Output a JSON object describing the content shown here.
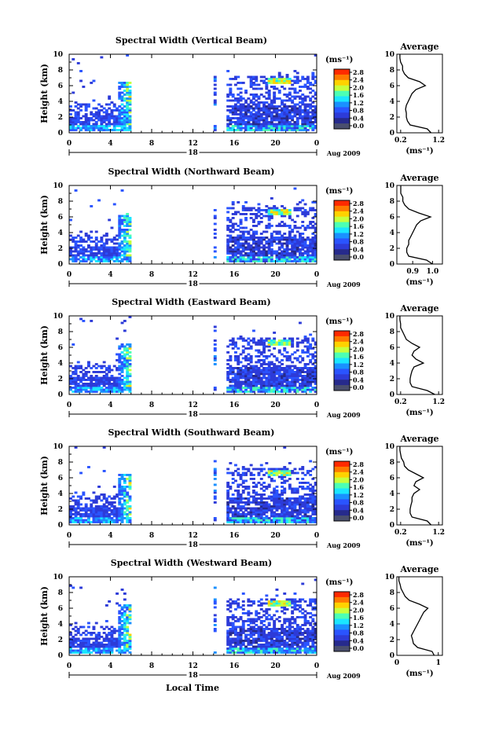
{
  "figure": {
    "xlabel": "Local Time",
    "date_label": "Aug 2009",
    "day_label": "18"
  },
  "colorbar": {
    "unit": "(ms⁻¹)",
    "ticks": [
      "2.8",
      "2.4",
      "2.0",
      "1.6",
      "1.2",
      "0.8",
      "0.4",
      "0.0"
    ],
    "colors": [
      "#ff2a00",
      "#ff7a00",
      "#ffd200",
      "#c8ff3c",
      "#4cffb4",
      "#1ae6ff",
      "#1a90ff",
      "#2a54ff",
      "#2d3bd8",
      "#262a8c",
      "#4a4f6e"
    ]
  },
  "chart_data": [
    {
      "type": "heatmap",
      "title": "Spectral Width (Vertical Beam)",
      "ylabel": "Height (km)",
      "xlabel": "",
      "xlim": [
        0,
        24
      ],
      "ylim": [
        0,
        10
      ],
      "xticks": [
        "0",
        "4",
        "8",
        "12",
        "16",
        "20",
        "0"
      ],
      "yticks": [
        "0",
        "2",
        "4",
        "6",
        "8",
        "10"
      ],
      "avg": {
        "title": "Average",
        "xlabel": "(ms⁻¹)",
        "xticks": [
          "0.2",
          "1.2"
        ],
        "xlim": [
          0.1,
          1.3
        ],
        "heights": [
          0,
          0.5,
          1,
          1.5,
          2,
          2.5,
          3,
          3.5,
          4,
          4.5,
          5,
          5.5,
          6,
          6.5,
          7,
          7.5,
          8,
          8.5,
          9,
          9.5,
          10
        ],
        "values": [
          1.0,
          0.9,
          0.45,
          0.38,
          0.35,
          0.35,
          0.33,
          0.35,
          0.4,
          0.45,
          0.5,
          0.6,
          0.85,
          0.7,
          0.4,
          0.3,
          0.25,
          0.25,
          0.2,
          0.18,
          0.18
        ]
      }
    },
    {
      "type": "heatmap",
      "title": "Spectral Width (Northward Beam)",
      "ylabel": "Height (km)",
      "xlabel": "",
      "xlim": [
        0,
        24
      ],
      "ylim": [
        0,
        10
      ],
      "xticks": [
        "0",
        "4",
        "8",
        "12",
        "16",
        "20",
        "0"
      ],
      "yticks": [
        "0",
        "2",
        "4",
        "6",
        "8",
        "10"
      ],
      "avg": {
        "title": "Average",
        "xlabel": "(ms⁻¹)",
        "xticks": [
          "0.9",
          "1.0"
        ],
        "xlim": [
          0.82,
          1.05
        ],
        "heights": [
          0,
          0.5,
          1,
          1.5,
          2,
          2.5,
          3,
          3.5,
          4,
          4.5,
          5,
          5.5,
          6,
          6.5,
          7,
          7.5,
          8,
          8.5,
          9,
          9.5,
          10
        ],
        "values": [
          1.0,
          0.97,
          0.88,
          0.87,
          0.87,
          0.88,
          0.88,
          0.89,
          0.9,
          0.91,
          0.92,
          0.94,
          0.99,
          0.93,
          0.88,
          0.86,
          0.85,
          0.85,
          0.84,
          0.84,
          0.84
        ]
      }
    },
    {
      "type": "heatmap",
      "title": "Spectral Width (Eastward Beam)",
      "ylabel": "Height (km)",
      "xlabel": "",
      "xlim": [
        0,
        24
      ],
      "ylim": [
        0,
        10
      ],
      "xticks": [
        "0",
        "4",
        "8",
        "12",
        "16",
        "20",
        "0"
      ],
      "yticks": [
        "0",
        "2",
        "4",
        "6",
        "8",
        "10"
      ],
      "avg": {
        "title": "Average",
        "xlabel": "(ms⁻¹)",
        "xticks": [
          "0.2",
          "1.2"
        ],
        "xlim": [
          0.1,
          1.3
        ],
        "heights": [
          0,
          0.5,
          1,
          1.5,
          2,
          2.5,
          3,
          3.5,
          4,
          4.5,
          5,
          5.5,
          6,
          6.5,
          7,
          7.5,
          8,
          8.5,
          9,
          9.5,
          10
        ],
        "values": [
          1.1,
          0.9,
          0.5,
          0.45,
          0.45,
          0.47,
          0.5,
          0.55,
          0.8,
          0.6,
          0.5,
          0.55,
          0.7,
          0.5,
          0.35,
          0.3,
          0.25,
          0.2,
          0.2,
          0.18,
          0.18
        ]
      }
    },
    {
      "type": "heatmap",
      "title": "Spectral Width (Southward Beam)",
      "ylabel": "Height (km)",
      "xlabel": "",
      "xlim": [
        0,
        24
      ],
      "ylim": [
        0,
        10
      ],
      "xticks": [
        "0",
        "4",
        "8",
        "12",
        "16",
        "20",
        "0"
      ],
      "yticks": [
        "0",
        "2",
        "4",
        "6",
        "8",
        "10"
      ],
      "avg": {
        "title": "Average",
        "xlabel": "(ms⁻¹)",
        "xticks": [
          "0.2",
          "1.2"
        ],
        "xlim": [
          0.1,
          1.3
        ],
        "heights": [
          0,
          0.5,
          1,
          1.5,
          2,
          2.5,
          3,
          3.5,
          4,
          4.5,
          5,
          5.5,
          6,
          6.5,
          7,
          7.5,
          8,
          8.5,
          9,
          9.5,
          10
        ],
        "values": [
          1.0,
          0.9,
          0.5,
          0.45,
          0.45,
          0.47,
          0.5,
          0.5,
          0.55,
          0.7,
          0.55,
          0.6,
          0.8,
          0.6,
          0.4,
          0.3,
          0.28,
          0.22,
          0.2,
          0.18,
          0.18
        ]
      }
    },
    {
      "type": "heatmap",
      "title": "Spectral Width (Westward Beam)",
      "ylabel": "Height (km)",
      "xlabel": "Local Time",
      "xlim": [
        0,
        24
      ],
      "ylim": [
        0,
        10
      ],
      "xticks": [
        "0",
        "4",
        "8",
        "12",
        "16",
        "20",
        "0"
      ],
      "yticks": [
        "0",
        "2",
        "4",
        "6",
        "8",
        "10"
      ],
      "avg": {
        "title": "Average",
        "xlabel": "(ms⁻¹)",
        "xticks": [
          "0",
          "1"
        ],
        "xlim": [
          0,
          1.1
        ],
        "heights": [
          0,
          0.5,
          1,
          1.5,
          2,
          2.5,
          3,
          3.5,
          4,
          4.5,
          5,
          5.5,
          6,
          6.5,
          7,
          7.5,
          8,
          8.5,
          9,
          9.5,
          10
        ],
        "values": [
          0.9,
          0.85,
          0.5,
          0.4,
          0.38,
          0.35,
          0.4,
          0.45,
          0.5,
          0.55,
          0.6,
          0.65,
          0.75,
          0.55,
          0.3,
          0.2,
          0.15,
          0.1,
          0.08,
          0.05,
          0.05
        ]
      }
    }
  ]
}
